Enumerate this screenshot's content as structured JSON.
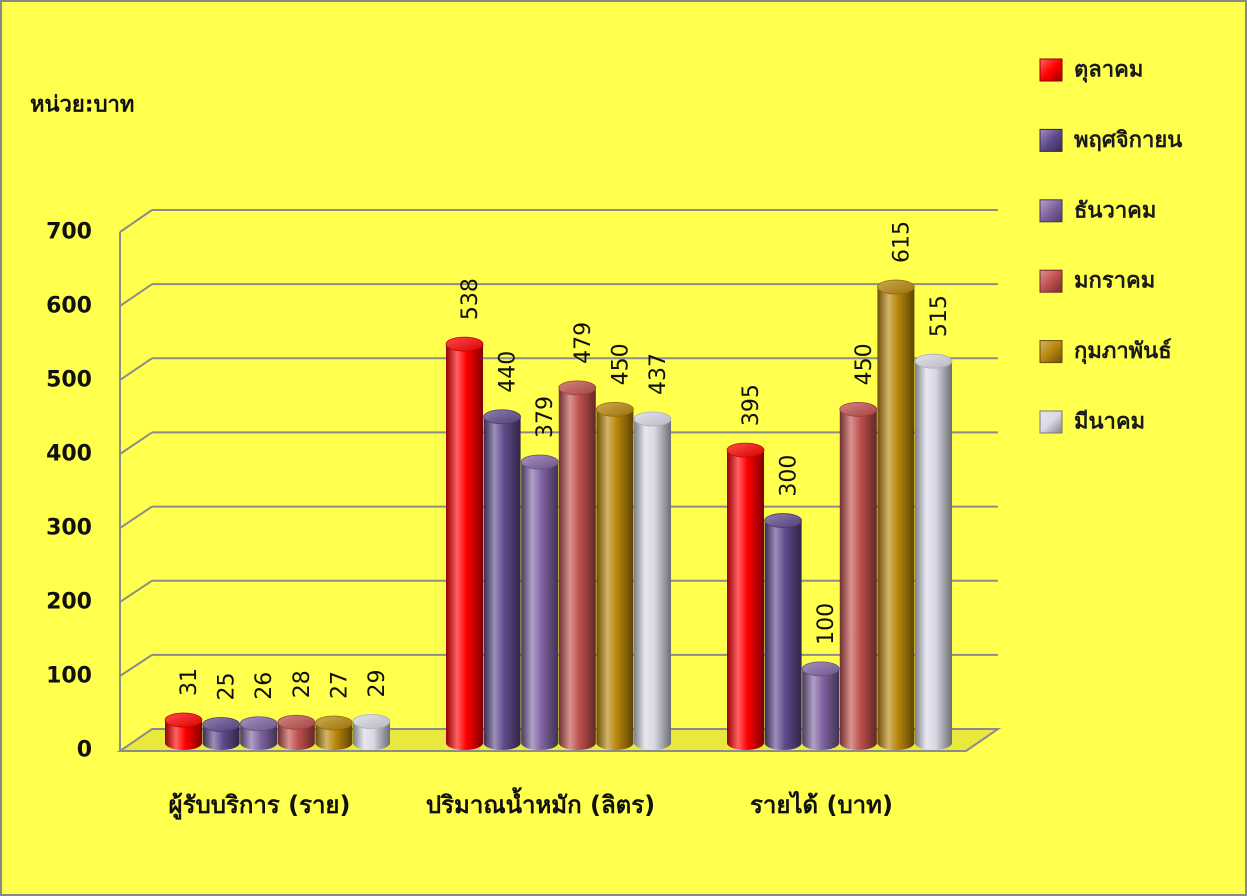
{
  "chart_data": {
    "type": "bar",
    "style": "3d-cylinder",
    "ylabel": "หน่วย:บาท",
    "categories": [
      "ผู้รับบริการ (ราย)",
      "ปริมาณน้ำหมัก (ลิตร)",
      "รายได้ (บาท)"
    ],
    "series": [
      {
        "name": "ตุลาคม",
        "values": [
          31,
          538,
          395
        ],
        "color": "#FF0000"
      },
      {
        "name": "พฤศจิกายน",
        "values": [
          25,
          440,
          300
        ],
        "color": "#604A8C"
      },
      {
        "name": "ธันวาคม",
        "values": [
          26,
          379,
          100
        ],
        "color": "#8064A2"
      },
      {
        "name": "มกราคม",
        "values": [
          28,
          479,
          450
        ],
        "color": "#C0504D"
      },
      {
        "name": "กุมภาพันธ์",
        "values": [
          27,
          450,
          615
        ],
        "color": "#B8860B"
      },
      {
        "name": "มีนาคม",
        "values": [
          29,
          437,
          515
        ],
        "color": "#D9D9E6"
      }
    ],
    "ylim": [
      0,
      700
    ],
    "yticks": [
      0,
      100,
      200,
      300,
      400,
      500,
      600,
      700
    ],
    "grid": true,
    "legend_position": "right",
    "data_labels": true,
    "background_color": "#FFFF4D",
    "gridline_color": "#8C8C8C"
  }
}
